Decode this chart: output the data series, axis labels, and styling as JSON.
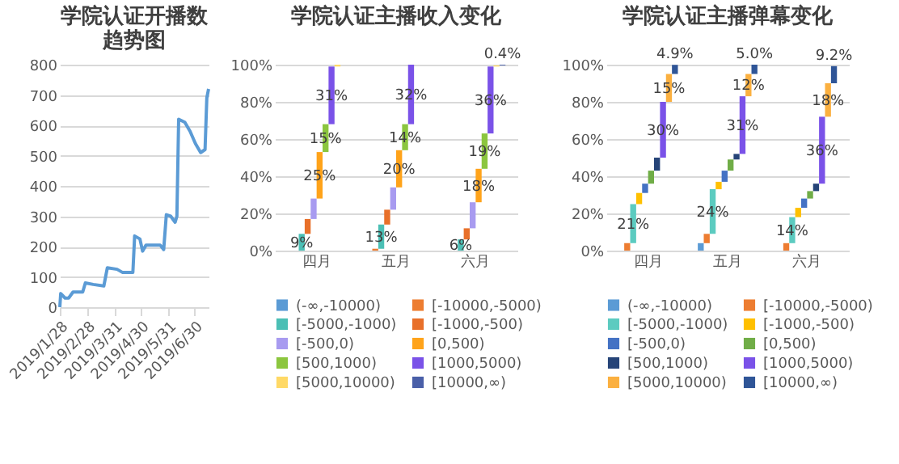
{
  "chart_data": [
    {
      "type": "line",
      "title": "学院认证开播数趋势图",
      "grid": "y",
      "x": [
        "2019-01-28",
        "2019-01-29",
        "2019-02-03",
        "2019-02-07",
        "2019-02-12",
        "2019-02-23",
        "2019-02-26",
        "2019-03-07",
        "2019-03-19",
        "2019-03-23",
        "2019-04-03",
        "2019-04-09",
        "2019-04-21",
        "2019-04-23",
        "2019-04-29",
        "2019-05-02",
        "2019-05-06",
        "2019-05-22",
        "2019-05-26",
        "2019-05-29",
        "2019-06-03",
        "2019-06-08",
        "2019-06-10",
        "2019-06-12",
        "2019-06-19",
        "2019-06-25",
        "2019-07-01",
        "2019-07-07",
        "2019-07-12",
        "2019-07-14",
        "2019-07-16"
      ],
      "series": [
        {
          "color": "#5b9bd5",
          "values": [
            0,
            45,
            30,
            30,
            50,
            50,
            80,
            75,
            70,
            130,
            125,
            115,
            115,
            235,
            225,
            185,
            205,
            205,
            190,
            305,
            300,
            280,
            300,
            620,
            610,
            580,
            540,
            510,
            520,
            690,
            720
          ]
        }
      ],
      "xlim": [
        "2019-01-28",
        "2019-07-16"
      ],
      "xticks": [
        {
          "value": "2019-01-28",
          "label": "2019/1/28"
        },
        {
          "value": "2019-02-28",
          "label": "2019/2/28"
        },
        {
          "value": "2019-03-31",
          "label": "2019/3/31"
        },
        {
          "value": "2019-04-30",
          "label": "2019/4/30"
        },
        {
          "value": "2019-05-31",
          "label": "2019/5/31"
        },
        {
          "value": "2019-06-30",
          "label": "2019/6/30"
        }
      ],
      "ylim": [
        0,
        800
      ],
      "yticks": [
        0,
        100,
        200,
        300,
        400,
        500,
        600,
        700,
        800
      ]
    },
    {
      "type": "bar",
      "title": "学院认证主播收入变化",
      "grid": "y",
      "legend": "bottom",
      "stacked": true,
      "categories": [
        "四月",
        "五月",
        "六月"
      ],
      "series": [
        {
          "name": "(-∞,-10000)",
          "color": "#5b9bd5",
          "values": [
            null,
            null,
            null
          ],
          "value_labels": [
            null,
            null,
            null
          ]
        },
        {
          "name": "[-10000,-5000)",
          "color": "#ed7d31",
          "values": [
            null,
            1,
            null
          ],
          "value_labels": [
            null,
            null,
            null
          ]
        },
        {
          "name": "[-5000,-1000)",
          "color": "#4bbfb5",
          "values": [
            9,
            13,
            6
          ],
          "value_labels": [
            "9%",
            "13%",
            "6%"
          ]
        },
        {
          "name": "[-1000,-500)",
          "color": "#e8702a",
          "values": [
            8,
            8,
            6
          ],
          "value_labels": [
            null,
            null,
            null
          ]
        },
        {
          "name": "[-500,0)",
          "color": "#a89bf0",
          "values": [
            11,
            12,
            14
          ],
          "value_labels": [
            null,
            null,
            null
          ]
        },
        {
          "name": "[0,500)",
          "color": "#ffa31a",
          "values": [
            25,
            20,
            18
          ],
          "value_labels": [
            "25%",
            "20%",
            "18%"
          ]
        },
        {
          "name": "[500,1000)",
          "color": "#8cc63f",
          "values": [
            15,
            14,
            19
          ],
          "value_labels": [
            "15%",
            "14%",
            "19%"
          ]
        },
        {
          "name": "[1000,5000)",
          "color": "#7a52e8",
          "values": [
            31,
            32,
            36
          ],
          "value_labels": [
            "31%",
            "32%",
            "36%"
          ]
        },
        {
          "name": "[5000,10000)",
          "color": "#ffd966",
          "values": [
            1,
            null,
            0.6
          ],
          "value_labels": [
            null,
            null,
            null
          ]
        },
        {
          "name": "[10000,∞)",
          "color": "#4a5fa8",
          "values": [
            null,
            null,
            0.4
          ],
          "value_labels": [
            null,
            null,
            "0.4%"
          ]
        }
      ],
      "ylim": [
        0,
        100
      ],
      "yticks": [
        {
          "value": 0,
          "label": "0%"
        },
        {
          "value": 20,
          "label": "20%"
        },
        {
          "value": 40,
          "label": "40%"
        },
        {
          "value": 60,
          "label": "60%"
        },
        {
          "value": 80,
          "label": "80%"
        },
        {
          "value": 100,
          "label": "100%"
        }
      ]
    },
    {
      "type": "bar",
      "title": "学院认证主播弹幕变化",
      "grid": "y",
      "legend": "bottom",
      "stacked": true,
      "categories": [
        "四月",
        "五月",
        "六月"
      ],
      "series": [
        {
          "name": "(-∞,-10000)",
          "color": "#5b9bd5",
          "values": [
            null,
            4,
            null
          ],
          "value_labels": [
            null,
            null,
            null
          ]
        },
        {
          "name": "[-10000,-5000)",
          "color": "#ed7d31",
          "values": [
            4,
            5,
            4
          ],
          "value_labels": [
            null,
            null,
            null
          ]
        },
        {
          "name": "[-5000,-1000)",
          "color": "#5ccbc0",
          "values": [
            21,
            24,
            14
          ],
          "value_labels": [
            "21%",
            "24%",
            "14%"
          ]
        },
        {
          "name": "[-1000,-500)",
          "color": "#ffc000",
          "values": [
            6,
            4,
            5
          ],
          "value_labels": [
            null,
            null,
            null
          ]
        },
        {
          "name": "[-500,0)",
          "color": "#4472c4",
          "values": [
            5,
            6,
            5
          ],
          "value_labels": [
            null,
            null,
            null
          ]
        },
        {
          "name": "[0,500)",
          "color": "#70ad47",
          "values": [
            7,
            6,
            4
          ],
          "value_labels": [
            null,
            null,
            null
          ]
        },
        {
          "name": "[500,1000)",
          "color": "#264478",
          "values": [
            7,
            3,
            4
          ],
          "value_labels": [
            null,
            null,
            null
          ]
        },
        {
          "name": "[1000,5000)",
          "color": "#7a52e8",
          "values": [
            30,
            31,
            36
          ],
          "value_labels": [
            "30%",
            "31%",
            "36%"
          ]
        },
        {
          "name": "[5000,10000)",
          "color": "#fbb040",
          "values": [
            15,
            12,
            18
          ],
          "value_labels": [
            "15%",
            "12%",
            "18%"
          ]
        },
        {
          "name": "[10000,∞)",
          "color": "#2f5597",
          "values": [
            4.9,
            5,
            9.2
          ],
          "value_labels": [
            "4.9%",
            "5.0%",
            "9.2%"
          ]
        }
      ],
      "ylim": [
        0,
        100
      ],
      "yticks": [
        {
          "value": 0,
          "label": "0%"
        },
        {
          "value": 20,
          "label": "20%"
        },
        {
          "value": 40,
          "label": "40%"
        },
        {
          "value": 60,
          "label": "60%"
        },
        {
          "value": 80,
          "label": "80%"
        },
        {
          "value": 100,
          "label": "100%"
        }
      ]
    }
  ]
}
